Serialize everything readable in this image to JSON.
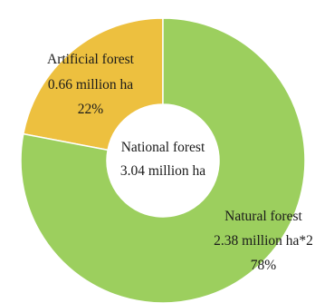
{
  "chart_data": {
    "type": "pie",
    "style": "donut",
    "center_label": {
      "title": "National forest",
      "value": "3.04 million ha"
    },
    "slices": [
      {
        "name": "Artificial forest",
        "value_text": "0.66 million ha",
        "value": 0.66,
        "percent": 22,
        "percent_text": "22%",
        "color": "#EDC03F"
      },
      {
        "name": "Natural forest",
        "value_text": "2.38 million ha*2",
        "value": 2.38,
        "percent": 78,
        "percent_text": "78%",
        "color": "#9CCF5E"
      }
    ],
    "border_color": "#ffffff"
  }
}
